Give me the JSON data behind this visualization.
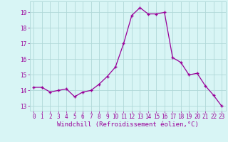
{
  "hours": [
    0,
    1,
    2,
    3,
    4,
    5,
    6,
    7,
    8,
    9,
    10,
    11,
    12,
    13,
    14,
    15,
    16,
    17,
    18,
    19,
    20,
    21,
    22,
    23
  ],
  "values": [
    14.2,
    14.2,
    13.9,
    14.0,
    14.1,
    13.6,
    13.9,
    14.0,
    14.4,
    14.9,
    15.5,
    17.0,
    18.8,
    19.3,
    18.9,
    18.9,
    19.0,
    16.1,
    15.8,
    15.0,
    15.1,
    14.3,
    13.7,
    13.0
  ],
  "line_color": "#990099",
  "marker": "+",
  "bg_color": "#d8f5f5",
  "grid_color": "#b0d8d8",
  "xlabel": "Windchill (Refroidissement éolien,°C)",
  "xlabel_color": "#990099",
  "yticks": [
    13,
    14,
    15,
    16,
    17,
    18,
    19
  ],
  "xticks": [
    0,
    1,
    2,
    3,
    4,
    5,
    6,
    7,
    8,
    9,
    10,
    11,
    12,
    13,
    14,
    15,
    16,
    17,
    18,
    19,
    20,
    21,
    22,
    23
  ],
  "ylim": [
    12.7,
    19.7
  ],
  "xlim": [
    -0.5,
    23.5
  ],
  "tick_color": "#990099",
  "tick_fontsize": 5.5,
  "xlabel_fontsize": 6.5
}
